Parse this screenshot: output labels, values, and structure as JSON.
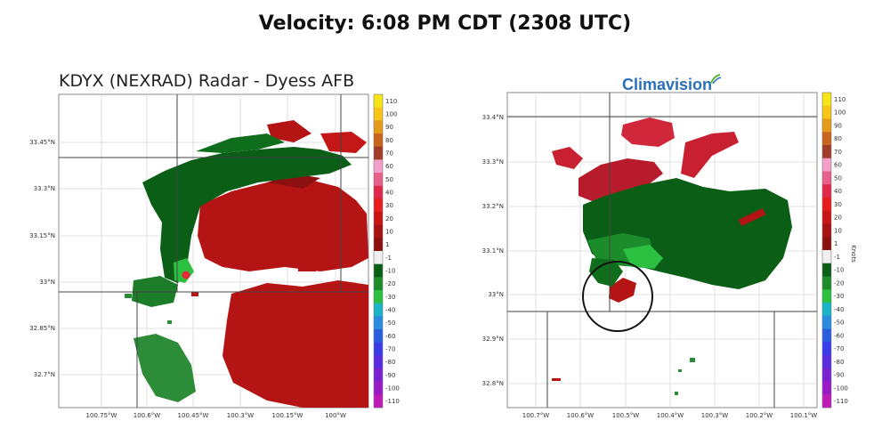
{
  "header": {
    "title": "Velocity: 6:08 PM CDT (2308 UTC)"
  },
  "left_panel": {
    "title": "KDYX (NEXRAD) Radar - Dyess AFB",
    "lat_labels": [
      "33.45°N",
      "33.3°N",
      "33.15°N",
      "33°N",
      "32.85°N",
      "32.7°N"
    ],
    "lon_labels": [
      "100.75°W",
      "100.6°W",
      "100.45°W",
      "100.3°W",
      "100.15°W",
      "100°W"
    ]
  },
  "right_panel": {
    "logo_text": "Climavision",
    "logo_icon": "climavision-swoosh-icon",
    "lat_labels": [
      "33.4°N",
      "33.3°N",
      "33.2°N",
      "33.1°N",
      "33°N",
      "32.9°N",
      "32.8°N"
    ],
    "lon_labels": [
      "100.7°W",
      "100.6°W",
      "100.5°W",
      "100.4°W",
      "100.3°W",
      "100.2°W",
      "100.1°W"
    ],
    "colorbar_unit": "Knots"
  },
  "colorbar": {
    "labels": [
      "110",
      "100",
      "90",
      "80",
      "70",
      "60",
      "50",
      "40",
      "30",
      "20",
      "10",
      "1",
      "-1",
      "-10",
      "-20",
      "-30",
      "-40",
      "-50",
      "-60",
      "-70",
      "-80",
      "-90",
      "-100",
      "-110"
    ],
    "colors": [
      "#f7e51a",
      "#f5c51a",
      "#e59a1a",
      "#c8641e",
      "#a03c28",
      "#f2a0c8",
      "#e8608c",
      "#e0284a",
      "#e81c1c",
      "#c81414",
      "#a81212",
      "#8c1010",
      "#f0f0f0",
      "#0a5e16",
      "#1c8c2a",
      "#2cc040",
      "#1ab4c8",
      "#2a8ce0",
      "#2a5ce0",
      "#3a3ce8",
      "#5a2ce0",
      "#7a22d0",
      "#9a1ac8",
      "#c01ab8"
    ]
  }
}
